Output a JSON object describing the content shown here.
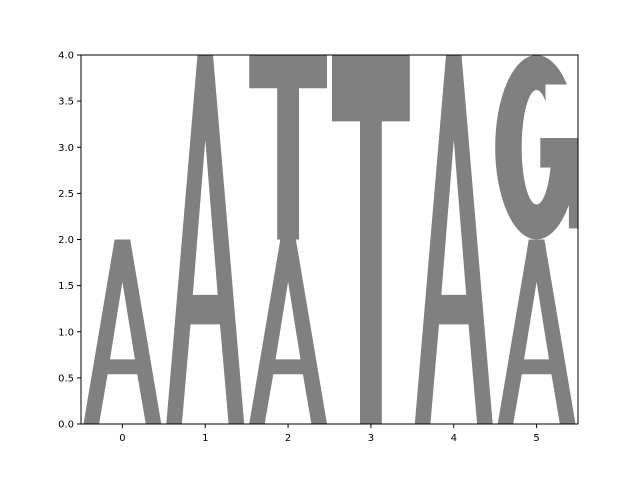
{
  "chart_data": {
    "type": "sequence-logo",
    "title": "",
    "xlabel": "",
    "ylabel": "",
    "xlim": [
      -0.5,
      5.5
    ],
    "ylim": [
      0,
      4
    ],
    "x_ticks": [
      "0",
      "1",
      "2",
      "3",
      "4",
      "5"
    ],
    "y_ticks": [
      "0.0",
      "0.5",
      "1.0",
      "1.5",
      "2.0",
      "2.5",
      "3.0",
      "3.5",
      "4.0"
    ],
    "letter_color": "#808080",
    "grid": false,
    "positions": [
      {
        "x": 0,
        "letters": [
          {
            "letter": "A",
            "bottom": 0,
            "top": 2
          }
        ]
      },
      {
        "x": 1,
        "letters": [
          {
            "letter": "A",
            "bottom": 0,
            "top": 4
          }
        ]
      },
      {
        "x": 2,
        "letters": [
          {
            "letter": "A",
            "bottom": 0,
            "top": 2
          },
          {
            "letter": "T",
            "bottom": 2,
            "top": 4
          }
        ]
      },
      {
        "x": 3,
        "letters": [
          {
            "letter": "T",
            "bottom": 0,
            "top": 4
          }
        ]
      },
      {
        "x": 4,
        "letters": [
          {
            "letter": "A",
            "bottom": 0,
            "top": 4
          }
        ]
      },
      {
        "x": 5,
        "letters": [
          {
            "letter": "A",
            "bottom": 0,
            "top": 2
          },
          {
            "letter": "G",
            "bottom": 2,
            "top": 4
          }
        ]
      }
    ]
  }
}
